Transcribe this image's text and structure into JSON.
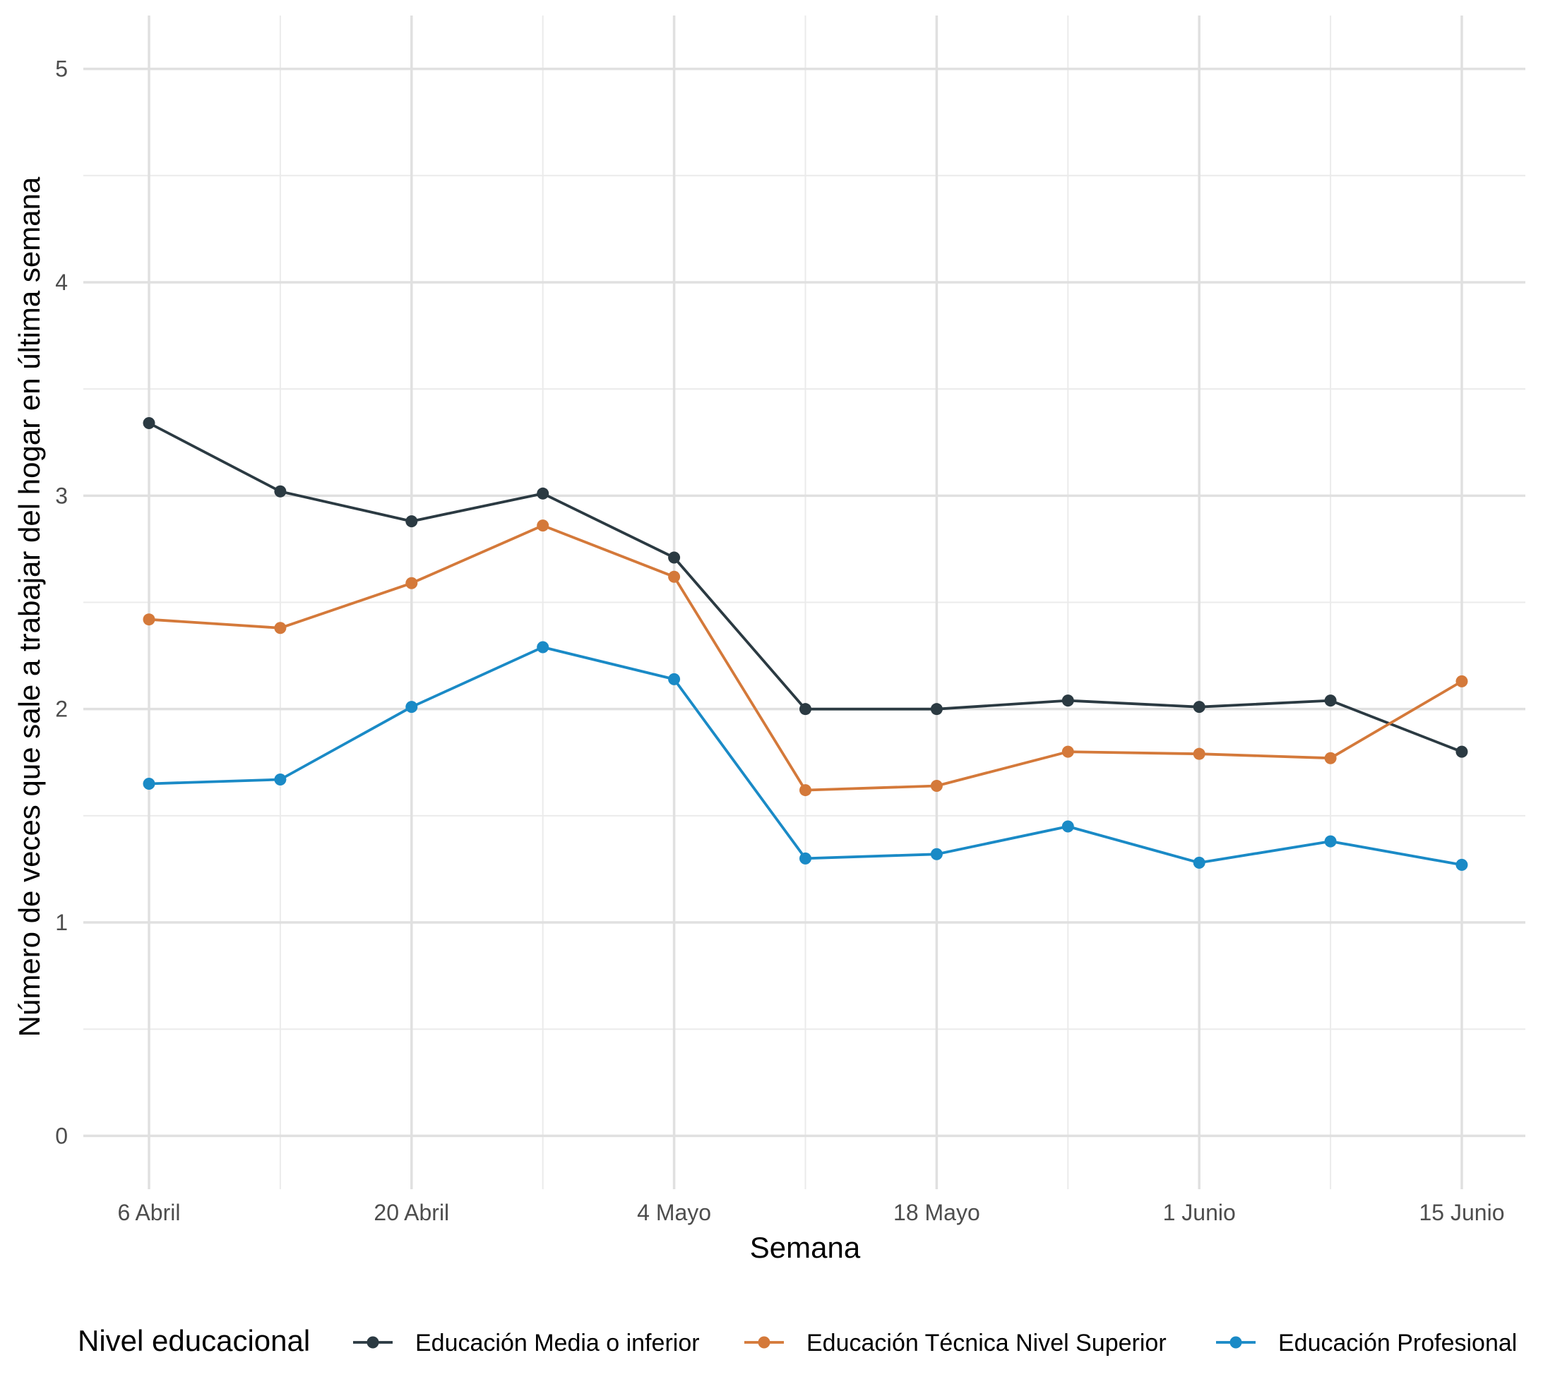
{
  "chart_data": {
    "type": "line",
    "title": "",
    "xlabel": "Semana",
    "ylabel": "Número de veces que sale a trabajar del hogar en última semana",
    "x": [
      "2020-04-06",
      "2020-04-13",
      "2020-04-20",
      "2020-04-27",
      "2020-05-04",
      "2020-05-11",
      "2020-05-18",
      "2020-05-25",
      "2020-06-01",
      "2020-06-08",
      "2020-06-15"
    ],
    "x_ticks": [
      "2020-04-06",
      "2020-04-20",
      "2020-05-04",
      "2020-05-18",
      "2020-06-01",
      "2020-06-15"
    ],
    "x_tick_labels": [
      "6 Abril",
      "20 Abril",
      "4 Mayo",
      "18 Mayo",
      "1 Junio",
      "15 Junio"
    ],
    "y_ticks": [
      0,
      1,
      2,
      3,
      4,
      5
    ],
    "y_tick_labels": [
      "0",
      "1",
      "2",
      "3",
      "4",
      "5"
    ],
    "ylim": [
      -0.25,
      5.25
    ],
    "grid": true,
    "legend_title": "Nivel educacional",
    "legend_position": "bottom",
    "series": [
      {
        "name": "Educación Media o inferior",
        "color": "#2b3a42",
        "values": [
          3.34,
          3.02,
          2.88,
          3.01,
          2.71,
          2.0,
          2.0,
          2.04,
          2.01,
          2.04,
          1.8
        ]
      },
      {
        "name": "Educación Técnica Nivel Superior",
        "color": "#d4793a",
        "values": [
          2.42,
          2.38,
          2.59,
          2.86,
          2.62,
          1.62,
          1.64,
          1.8,
          1.79,
          1.77,
          2.13
        ]
      },
      {
        "name": "Educación Profesional",
        "color": "#1a8ac6",
        "values": [
          1.65,
          1.67,
          2.01,
          2.29,
          2.14,
          1.3,
          1.32,
          1.45,
          1.28,
          1.38,
          1.27
        ]
      }
    ]
  }
}
